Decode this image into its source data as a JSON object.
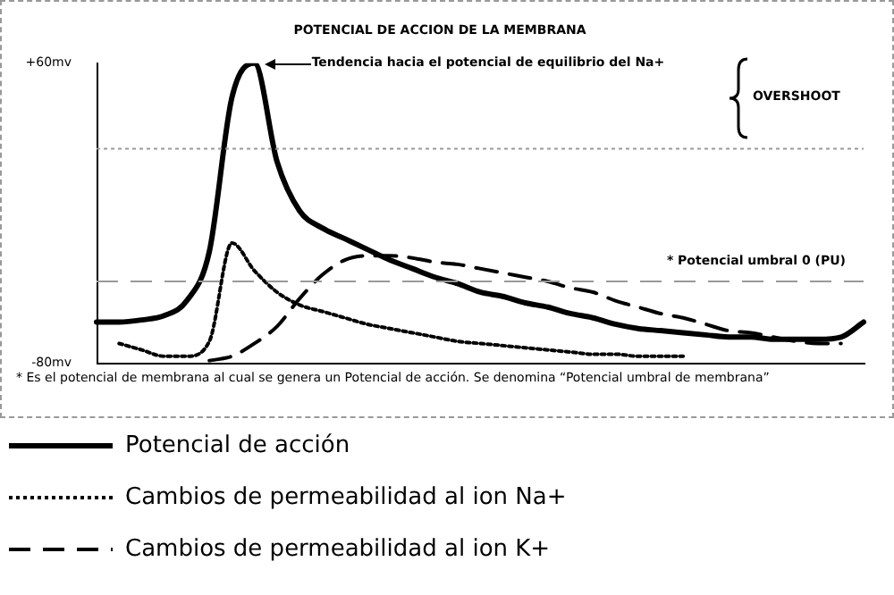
{
  "chart_data": {
    "type": "line",
    "title": "POTENCIAL DE ACCION DE LA MEMBRANA",
    "categories": [
      null,
      null,
      null,
      null,
      null,
      null,
      null,
      null,
      null,
      null,
      null,
      null,
      null,
      null,
      null,
      null,
      null,
      null,
      null,
      null,
      null,
      null,
      null,
      null,
      null,
      null,
      null,
      null,
      null,
      null,
      null,
      null,
      null,
      null,
      null
    ],
    "series": [
      {
        "name": "Potencial de acción",
        "color": "#000000",
        "line_style": "solid",
        "values": [
          -61,
          -61,
          -60,
          -58,
          -51,
          -28,
          44,
          60,
          14,
          -9,
          -17,
          -22,
          -27,
          -32,
          -36,
          -40,
          -43,
          -47,
          -49,
          -52,
          -54,
          -57,
          -59,
          -62,
          -64,
          -65,
          -66,
          -67,
          -68,
          -68,
          -69,
          -69,
          -69,
          -68,
          -61
        ]
      },
      {
        "name": "Cambios de permeabilidad al ion Na+",
        "color": "#000000",
        "line_style": "dotted",
        "values": [
          null,
          -71,
          -74,
          -77,
          -77,
          -70,
          -24,
          -37,
          -47,
          -53,
          -56,
          -59,
          -62,
          -64,
          -66,
          -68,
          -70,
          -71,
          -72,
          -73,
          -74,
          -75,
          -76,
          -76,
          -77,
          -77,
          -77,
          null,
          null,
          null,
          null,
          null,
          null,
          null,
          null
        ]
      },
      {
        "name": "Cambios de permeabilidad al ion K+",
        "color": "#000000",
        "line_style": "dashed",
        "values": [
          null,
          null,
          null,
          null,
          null,
          -79,
          -77,
          -71,
          -63,
          -50,
          -39,
          -32,
          -30,
          -30,
          -31,
          -33,
          -34,
          -36,
          -38,
          -40,
          -42,
          -45,
          -47,
          -51,
          -54,
          -57,
          -59,
          -62,
          -65,
          -66,
          -68,
          -70,
          -71,
          -71,
          null
        ]
      }
    ],
    "ylim": [
      -80,
      60
    ],
    "yticks": [
      {
        "value": 60,
        "label": "+60mv"
      },
      {
        "value": -80,
        "label": "-80mv"
      }
    ],
    "grid": false,
    "marker": "none",
    "legend": "bottom",
    "ref_lines": [
      {
        "axis": "y",
        "value": 20,
        "label": null,
        "color": "#999999",
        "line_style": "dotted"
      },
      {
        "axis": "y",
        "value": -42,
        "label": "* Potencial umbral 0 (PU)",
        "color": "#999999",
        "line_style": "dashed"
      }
    ],
    "annotations": [
      "Tendencia hacia el potencial de equilibrio del Na+",
      "OVERSHOOT",
      "* Es el potencial de membrana al cual se genera un Potencial de acción. Se denomina “Potencial umbral de membrana”"
    ]
  }
}
